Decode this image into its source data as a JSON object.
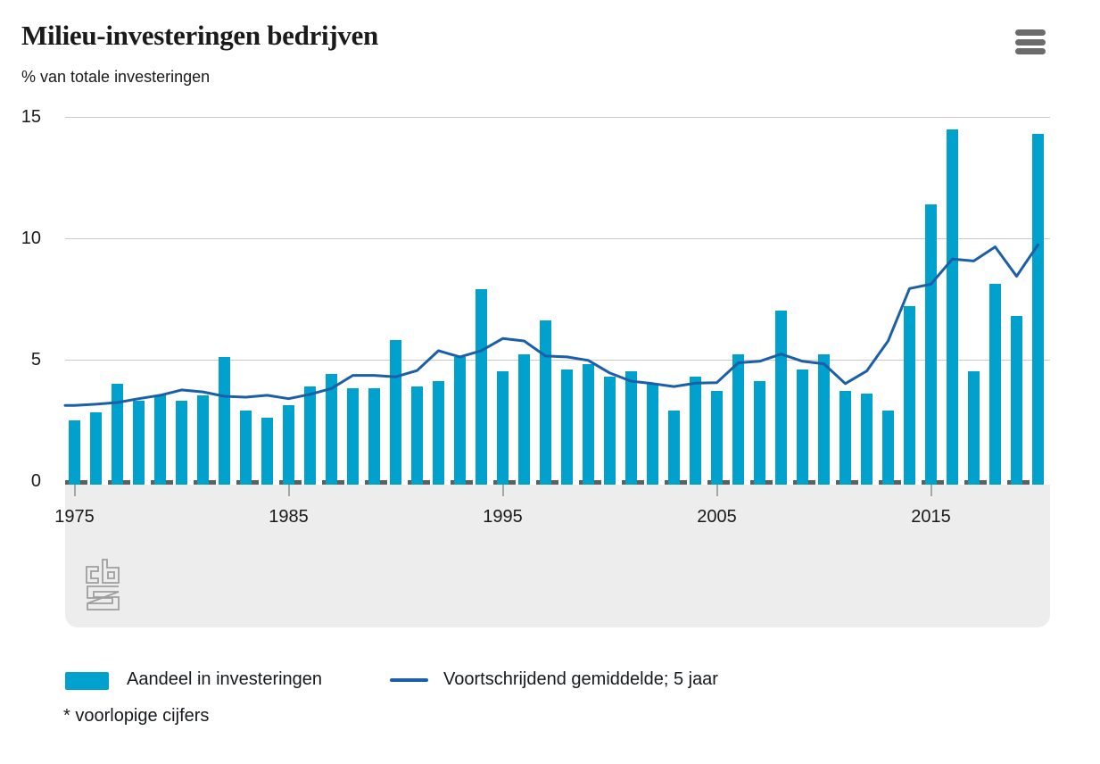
{
  "header": {
    "title": "Milieu-investeringen bedrijven",
    "subtitle": "% van totale investeringen"
  },
  "footnote": "* voorlopige cijfers",
  "colors": {
    "bar": "#00a1cd",
    "line": "#1b5fa8",
    "grid": "#c9c9c9",
    "zero_axis": "#5f5f5f",
    "axis_band": "#ededed",
    "text": "#1a1a1a",
    "menu_icon": "#6b6b6b",
    "logo": "#9e9e9e"
  },
  "chart_data": {
    "type": "bar",
    "title": "Milieu-investeringen bedrijven",
    "ylabel": "% van totale investeringen",
    "ylim": [
      0,
      15
    ],
    "yticks": [
      0,
      5,
      10,
      15
    ],
    "xticks": [
      1975,
      1985,
      1995,
      2005,
      2015
    ],
    "grid": "horizontal",
    "legend_position": "bottom",
    "years": [
      1975,
      1976,
      1977,
      1978,
      1979,
      1980,
      1981,
      1982,
      1983,
      1984,
      1985,
      1986,
      1987,
      1988,
      1989,
      1990,
      1991,
      1992,
      1993,
      1994,
      1995,
      1996,
      1997,
      1998,
      1999,
      2000,
      2001,
      2002,
      2003,
      2004,
      2005,
      2006,
      2007,
      2008,
      2009,
      2010,
      2011,
      2012,
      2013,
      2014,
      2015,
      2016,
      2017,
      2018,
      2019,
      2020
    ],
    "series": [
      {
        "name": "Aandeel in investeringen",
        "type": "bar",
        "values": [
          2.5,
          2.8,
          4.0,
          3.3,
          3.5,
          3.3,
          3.5,
          5.1,
          2.9,
          2.6,
          3.1,
          3.9,
          4.4,
          3.8,
          3.8,
          5.8,
          3.9,
          4.1,
          5.1,
          7.9,
          4.5,
          5.2,
          6.6,
          4.6,
          4.8,
          4.3,
          4.5,
          4.0,
          2.9,
          4.3,
          3.7,
          5.2,
          4.1,
          7.0,
          4.6,
          5.2,
          3.7,
          3.6,
          2.9,
          7.2,
          11.4,
          14.5,
          4.5,
          8.1,
          6.8,
          14.3
        ]
      },
      {
        "name": "Voortschrijdend gemiddelde; 5 jaar",
        "type": "line",
        "values": [
          3.1,
          3.15,
          3.22,
          3.38,
          3.52,
          3.74,
          3.66,
          3.48,
          3.44,
          3.52,
          3.38,
          3.56,
          3.8,
          4.34,
          4.34,
          4.28,
          4.54,
          5.36,
          5.1,
          5.36,
          5.86,
          5.76,
          5.14,
          5.1,
          4.96,
          4.44,
          4.1,
          4.0,
          3.88,
          4.02,
          4.04,
          4.86,
          4.92,
          5.22,
          4.92,
          4.82,
          4.0,
          4.52,
          5.76,
          7.92,
          8.1,
          9.14,
          9.06,
          9.64,
          8.43,
          9.73
        ]
      }
    ]
  }
}
